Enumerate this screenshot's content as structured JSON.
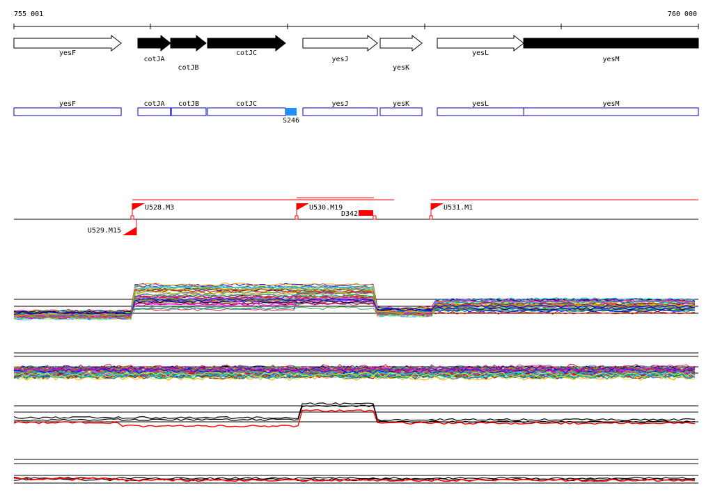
{
  "ruler": {
    "start_label": "755 001",
    "end_label": "760 000"
  },
  "genes": [
    {
      "name": "yesF",
      "filled": false,
      "label_row": "below"
    },
    {
      "name": "cotJA",
      "filled": true,
      "label_row": "below2"
    },
    {
      "name": "cotJB",
      "filled": true,
      "label_row": "below3"
    },
    {
      "name": "cotJC",
      "filled": true,
      "label_row": "below"
    },
    {
      "name": "yesJ",
      "filled": false,
      "label_row": "below"
    },
    {
      "name": "yesK",
      "filled": false,
      "label_row": "below3"
    },
    {
      "name": "yesL",
      "filled": false,
      "label_row": "below"
    },
    {
      "name": "yesM",
      "filled": true,
      "label_row": "below"
    }
  ],
  "gene_boxes": [
    "yesF",
    "cotJA",
    "cotJB",
    "cotJC",
    "yesJ",
    "yesK",
    "yesL",
    "yesM"
  ],
  "feature_marker": {
    "label": "S246",
    "color": "#1e90ff"
  },
  "transcription_units": [
    {
      "label": "U528.M3"
    },
    {
      "label": "U529.M15"
    },
    {
      "label": "U530.M19"
    },
    {
      "label": "U531.M1"
    }
  ],
  "terminator": {
    "label": "D342"
  },
  "colors": {
    "gene_box_border": "#0000b4",
    "transcript": "#ff0000",
    "black": "#000000"
  },
  "expression_panels": [
    "multi-condition profiles (upper)",
    "multi-condition profiles (lower)",
    "selected profiles (upper)",
    "selected profiles (lower)"
  ]
}
